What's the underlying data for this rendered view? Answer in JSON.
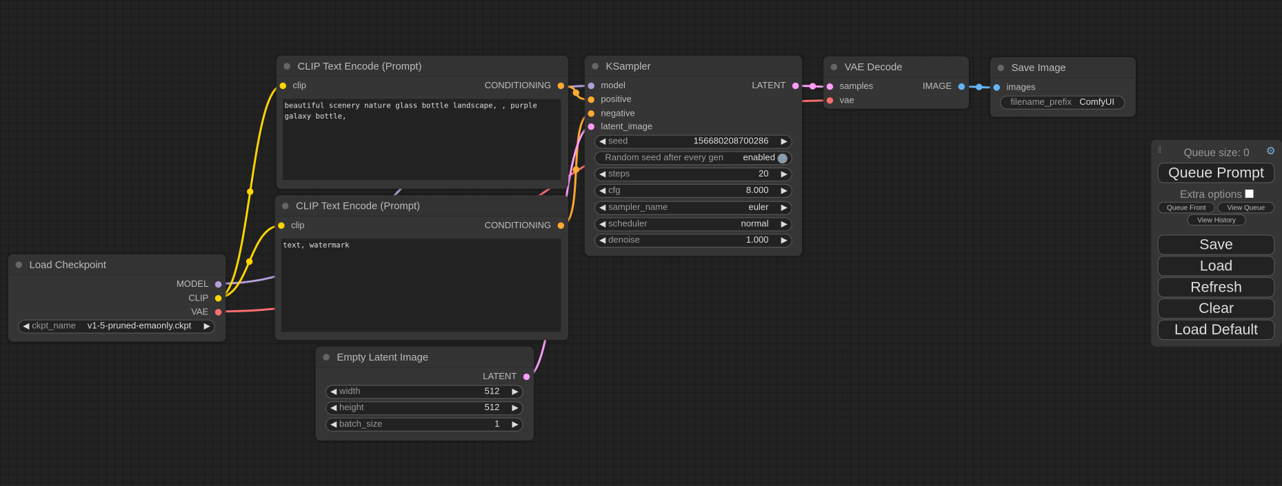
{
  "colors": {
    "model": "#b39ddb",
    "clip": "#ffd500",
    "vae": "#ff6e6e",
    "conditioning": "#ffa931",
    "latent": "#ff9cf9",
    "image": "#64b5f6"
  },
  "load_checkpoint": {
    "title": "Load Checkpoint",
    "outputs": [
      "MODEL",
      "CLIP",
      "VAE"
    ],
    "ckpt_label": "ckpt_name",
    "ckpt_value": "v1-5-pruned-emaonly.ckpt"
  },
  "clip_pos": {
    "title": "CLIP Text Encode (Prompt)",
    "input": "clip",
    "output": "CONDITIONING",
    "text": "beautiful scenery nature glass bottle landscape, , purple galaxy bottle,"
  },
  "clip_neg": {
    "title": "CLIP Text Encode (Prompt)",
    "input": "clip",
    "output": "CONDITIONING",
    "text": "text, watermark"
  },
  "ksampler": {
    "title": "KSampler",
    "inputs": [
      "model",
      "positive",
      "negative",
      "latent_image"
    ],
    "output": "LATENT",
    "widgets": [
      {
        "label": "seed",
        "value": "156680208700286"
      },
      {
        "label": "steps",
        "value": "20"
      },
      {
        "label": "cfg",
        "value": "8.000"
      },
      {
        "label": "sampler_name",
        "value": "euler"
      },
      {
        "label": "scheduler",
        "value": "normal"
      },
      {
        "label": "denoise",
        "value": "1.000"
      }
    ],
    "toggle": {
      "label": "Random seed after every gen",
      "value": "enabled"
    }
  },
  "vae_decode": {
    "title": "VAE Decode",
    "inputs": [
      "samples",
      "vae"
    ],
    "output": "IMAGE"
  },
  "save_image": {
    "title": "Save Image",
    "input": "images",
    "prefix_label": "filename_prefix",
    "prefix_value": "ComfyUI"
  },
  "empty_latent": {
    "title": "Empty Latent Image",
    "output": "LATENT",
    "widgets": [
      {
        "label": "width",
        "value": "512"
      },
      {
        "label": "height",
        "value": "512"
      },
      {
        "label": "batch_size",
        "value": "1"
      }
    ]
  },
  "panel": {
    "queue_size": "Queue size: 0",
    "queue_prompt": "Queue Prompt",
    "extra_options": "Extra options",
    "queue_front": "Queue Front",
    "view_queue": "View Queue",
    "view_history": "View History",
    "save": "Save",
    "load": "Load",
    "refresh": "Refresh",
    "clear": "Clear",
    "load_default": "Load Default"
  }
}
